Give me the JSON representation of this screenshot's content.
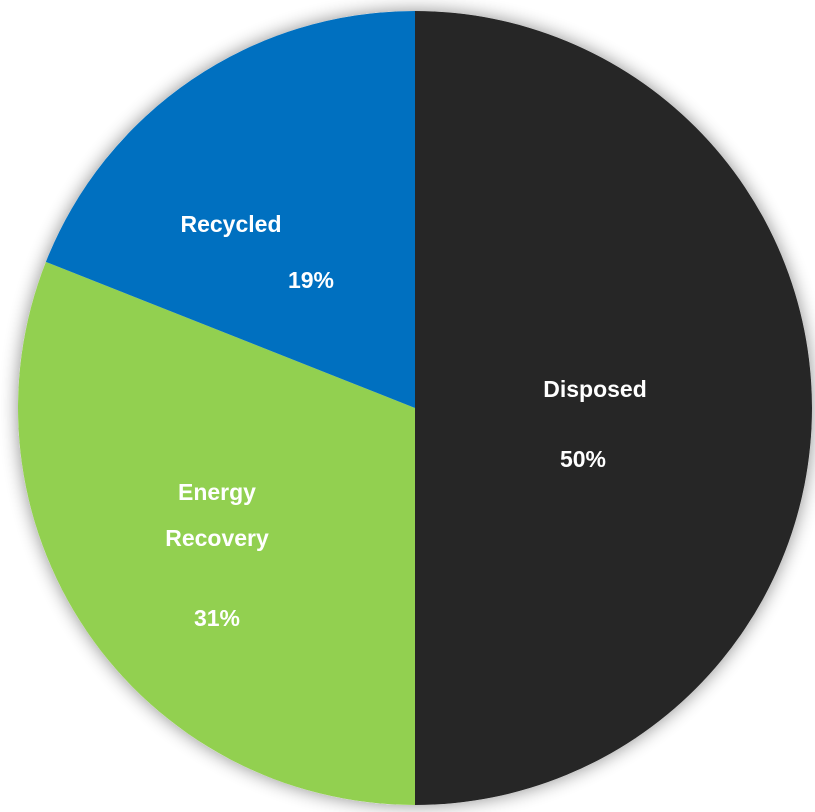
{
  "chart_data": {
    "type": "pie",
    "categories": [
      "Disposed",
      "Energy Recovery",
      "Recycled"
    ],
    "values": [
      50,
      31,
      19
    ],
    "value_labels": [
      "50%",
      "31%",
      "19%"
    ],
    "label_lines": [
      [
        "Disposed"
      ],
      [
        "Energy",
        "Recovery"
      ],
      [
        "Recycled"
      ]
    ],
    "start_angle_deg": 0,
    "direction": "clockwise",
    "colors": [
      "#262626",
      "#92D050",
      "#0070C0"
    ],
    "label_colors": [
      "#ffffff",
      "#ffffff",
      "#ffffff"
    ]
  }
}
